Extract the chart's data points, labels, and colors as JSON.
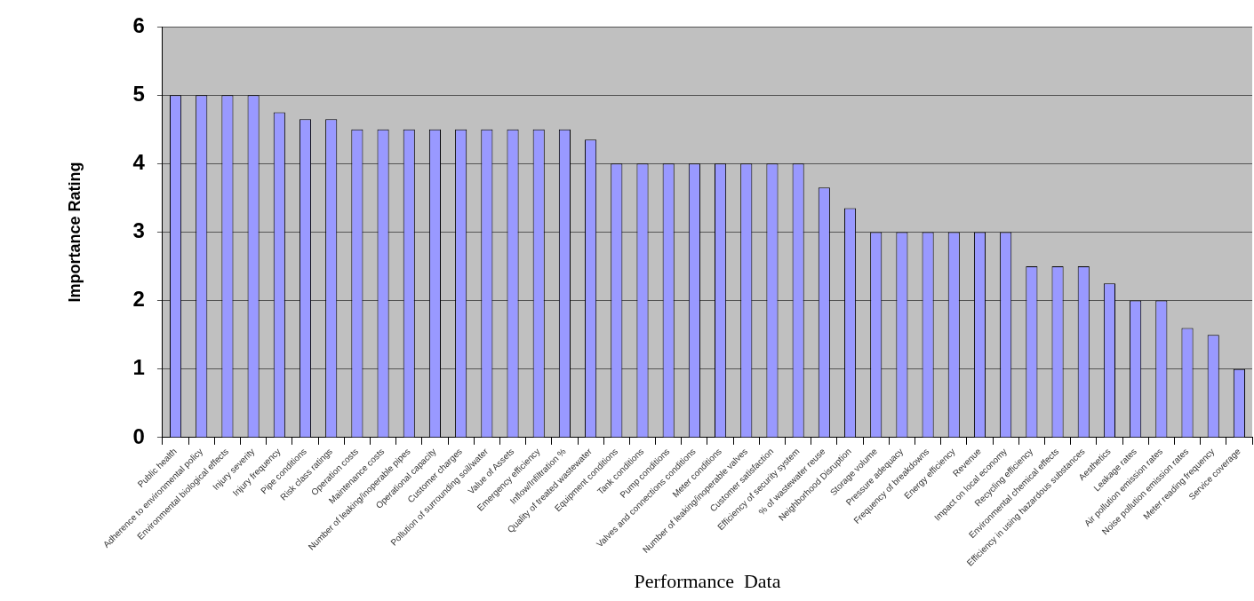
{
  "chart_data": {
    "type": "bar",
    "xlabel": "Performance  Data",
    "ylabel": "Importance Rating",
    "categories": [
      "Public health",
      "Adherence to environmental policy",
      "Environmental biological effects",
      "Injury severity",
      "Injury frequency",
      "Pipe conditions",
      "Risk class ratings",
      "Operation costs",
      "Maintenance costs",
      "Number of leaking/inoperable pipes",
      "Operational capacity",
      "Customer charges",
      "Pollution of surrounding soil/water",
      "Value of Assets",
      "Emergency efficiency",
      "Inflow/Infiltration %",
      "Quality of treated wastewater",
      "Equipment conditions",
      "Tank conditions",
      "Pump conditions",
      "Valves and connections conditions",
      "Meter conditions",
      "Number of leaking/inoperable valves",
      "Customer satisfaction",
      "Efficiency of security system",
      "% of wastewater reuse",
      "Neighborhood Disruption",
      "Storage volume",
      "Pressure adequacy",
      "Frequency of breakdowns",
      "Energy efficiency",
      "Revenue",
      "Impact on local economy",
      "Recycling efficiency",
      "Environmental chemical effects",
      "Efficiency in using hazardous substances",
      "Aesthetics",
      "Leakage rates",
      "Air pollution emission rates",
      "Noise pollution emission rates",
      "Meter reading frequency",
      "Service coverage"
    ],
    "values": [
      5,
      5,
      5,
      5,
      4.75,
      4.65,
      4.65,
      4.5,
      4.5,
      4.5,
      4.5,
      4.5,
      4.5,
      4.5,
      4.5,
      4.5,
      4.35,
      4,
      4,
      4,
      4,
      4,
      4,
      4,
      4,
      3.65,
      3.35,
      3,
      3,
      3,
      3,
      3,
      3,
      2.5,
      2.5,
      2.5,
      2.25,
      2,
      2,
      1.6,
      1.5,
      1
    ],
    "color": "#9999ff",
    "ylim": [
      0,
      6
    ],
    "yticks": [
      0,
      1,
      2,
      3,
      4,
      5,
      6
    ],
    "grid": "y"
  }
}
